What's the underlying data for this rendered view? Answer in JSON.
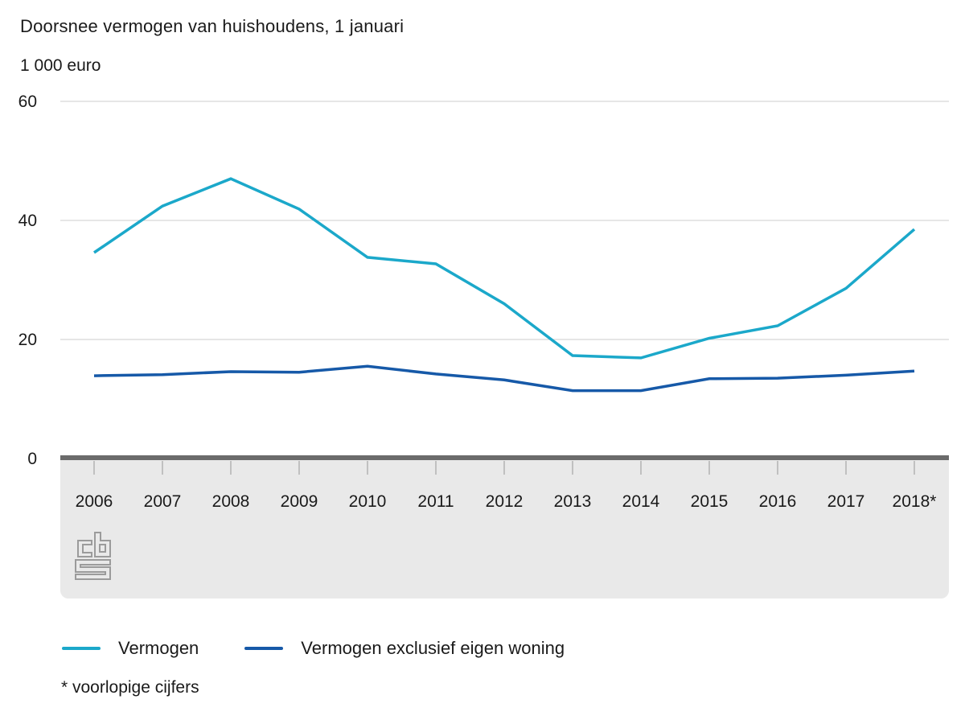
{
  "header": {
    "title": "Doorsnee vermogen van huishoudens, 1 januari",
    "unit": "1 000 euro"
  },
  "chart_data": {
    "type": "line",
    "title": "Doorsnee vermogen van huishoudens, 1 januari",
    "ylabel": "1 000 euro",
    "xlabel": "",
    "categories": [
      "2006",
      "2007",
      "2008",
      "2009",
      "2010",
      "2011",
      "2012",
      "2013",
      "2014",
      "2015",
      "2016",
      "2017",
      "2018*"
    ],
    "series": [
      {
        "name": "Vermogen",
        "color": "#1ba8ca",
        "values": [
          34.6,
          42.4,
          47.0,
          41.9,
          33.8,
          32.7,
          26.0,
          17.3,
          16.9,
          20.2,
          22.3,
          28.6,
          38.5
        ]
      },
      {
        "name": "Vermogen exclusief eigen woning",
        "color": "#1659a8",
        "values": [
          13.9,
          14.1,
          14.6,
          14.5,
          15.5,
          14.2,
          13.2,
          11.4,
          11.4,
          13.4,
          13.5,
          14.0,
          14.7
        ]
      }
    ],
    "ylim": [
      0,
      60
    ],
    "yticks": [
      0,
      20,
      40,
      60
    ],
    "grid": true,
    "legend_position": "bottom"
  },
  "footnote": "* voorlopige cijfers",
  "logo": {
    "name": "cbs-logo"
  },
  "colors": {
    "grid": "#cccccc",
    "axis": "#6b6b6b",
    "band": "#e9e9e9",
    "tick": "#b3b3b3",
    "text": "#1a1a1a",
    "logo": "#9b9b9b"
  }
}
